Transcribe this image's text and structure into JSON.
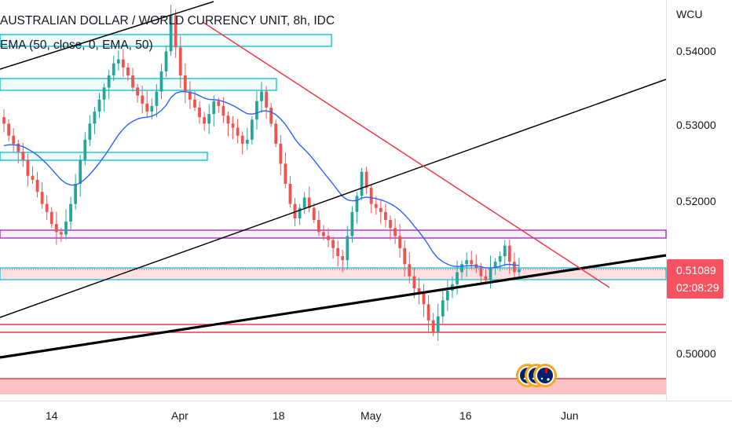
{
  "chart_data": {
    "type": "candlestick",
    "title": "AUSTRALIAN DOLLAR / WORLD CURRENCY UNIT, 8h, IDC",
    "indicator": "EMA (50, close, 0, EMA, 50)",
    "currency_label": "WCU",
    "y_ticks": [
      "0.54000",
      "0.53000",
      "0.52000",
      "0.50000"
    ],
    "y_tick_values": [
      0.54,
      0.53,
      0.52,
      0.5
    ],
    "x_ticks": [
      "14",
      "Apr",
      "18",
      "May",
      "16",
      "Jun"
    ],
    "current_price": "0.51089",
    "countdown": "02:08:29",
    "ylim": [
      0.4945,
      0.5444
    ],
    "colors": {
      "up": "#26a69a",
      "down": "#ef5350",
      "ema": "#2962ff",
      "trendline_red": "#f23645",
      "trendline_black": "#000000",
      "zone_cyan": "#00bcd4",
      "zone_purple": "#9c27b0",
      "price_label_bg": "#f7525f"
    },
    "ohlc_sample_close": [
      0.529,
      0.5275,
      0.5265,
      0.5255,
      0.5245,
      0.5225,
      0.522,
      0.5205,
      0.519,
      0.518,
      0.5165,
      0.5155,
      0.5152,
      0.5168,
      0.519,
      0.5215,
      0.5245,
      0.527,
      0.529,
      0.5305,
      0.532,
      0.5335,
      0.535,
      0.5365,
      0.537,
      0.536,
      0.535,
      0.5335,
      0.5325,
      0.5315,
      0.5305,
      0.5312,
      0.533,
      0.5355,
      0.538,
      0.5425,
      0.5385,
      0.535,
      0.533,
      0.532,
      0.531,
      0.5298,
      0.529,
      0.5302,
      0.5318,
      0.5312,
      0.53,
      0.529,
      0.5285,
      0.5275,
      0.5265,
      0.527,
      0.5295,
      0.5318,
      0.533,
      0.531,
      0.529,
      0.5265,
      0.524,
      0.5215,
      0.519,
      0.5172,
      0.5185,
      0.5198,
      0.5185,
      0.517,
      0.5155,
      0.515,
      0.5145,
      0.5135,
      0.5125,
      0.512,
      0.515,
      0.518,
      0.52,
      0.523,
      0.521,
      0.519,
      0.5185,
      0.518,
      0.517,
      0.516,
      0.515,
      0.5135,
      0.5115,
      0.51,
      0.5085,
      0.508,
      0.5065,
      0.5045,
      0.503,
      0.505,
      0.507,
      0.5082,
      0.509,
      0.5105,
      0.5115,
      0.512,
      0.5115,
      0.511,
      0.51,
      0.5095,
      0.511,
      0.5118,
      0.5125,
      0.5138,
      0.5118,
      0.5105,
      0.51089
    ]
  }
}
